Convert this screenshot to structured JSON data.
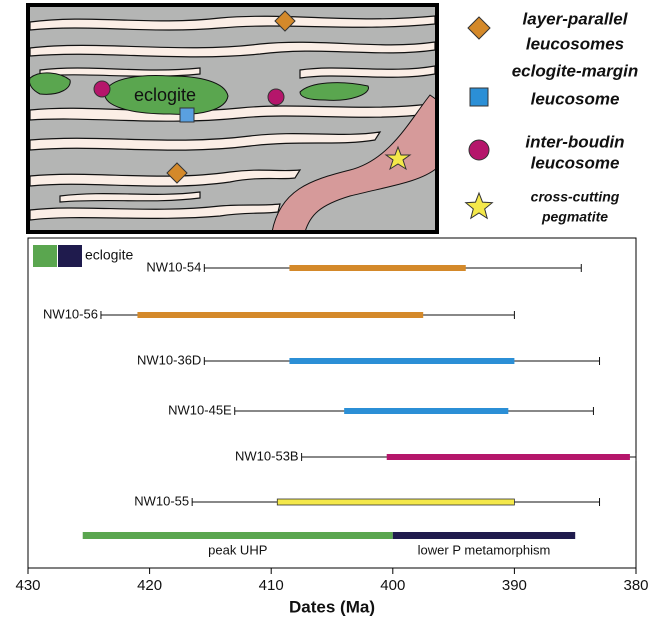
{
  "diagram": {
    "label": "eclogite"
  },
  "legend": [
    {
      "lines": [
        "layer-parallel",
        "leucosomes"
      ],
      "shape": "diamond",
      "color": "#d4892a"
    },
    {
      "lines": [
        "eclogite-margin",
        "leucosome"
      ],
      "shape": "square",
      "color": "#2b8fd6"
    },
    {
      "lines": [
        "inter-boudin",
        "leucosome"
      ],
      "shape": "circle",
      "color": "#b5166b"
    },
    {
      "lines": [
        "cross-cutting",
        "pegmatite"
      ],
      "shape": "star",
      "color": "#f4e84a"
    }
  ],
  "chart_data": {
    "type": "range",
    "x_label": "Dates (Ma)",
    "xlim": [
      430,
      380
    ],
    "xticks": [
      430,
      420,
      410,
      400,
      390,
      380
    ],
    "eclogite_legend": {
      "label": "eclogite",
      "colors": [
        "#5aa64f",
        "#1f1b4d"
      ]
    },
    "series": [
      {
        "name": "NW10-54",
        "color": "#d4892a",
        "whisker": [
          415.5,
          384.5
        ],
        "bar": [
          408.5,
          394
        ]
      },
      {
        "name": "NW10-56",
        "color": "#d4892a",
        "whisker": [
          424,
          390
        ],
        "bar": [
          421,
          397.5
        ]
      },
      {
        "name": "NW10-36D",
        "color": "#2b8fd6",
        "whisker": [
          415.5,
          383
        ],
        "bar": [
          408.5,
          390
        ]
      },
      {
        "name": "NW10-45E",
        "color": "#2b8fd6",
        "whisker": [
          413,
          383.5
        ],
        "bar": [
          404,
          390.5
        ]
      },
      {
        "name": "NW10-53B",
        "color": "#b5166b",
        "whisker": [
          407.5,
          380
        ],
        "bar": [
          400.5,
          380.5
        ]
      },
      {
        "name": "NW10-55",
        "color": "#f4e84a",
        "whisker": [
          416.5,
          383
        ],
        "bar": [
          409.5,
          390
        ]
      }
    ],
    "phases": [
      {
        "name": "peak UHP",
        "color": "#5aa64f",
        "range": [
          425.5,
          400
        ]
      },
      {
        "name": "lower P metamorphism",
        "color": "#1f1b4d",
        "range": [
          400,
          385
        ]
      }
    ]
  }
}
